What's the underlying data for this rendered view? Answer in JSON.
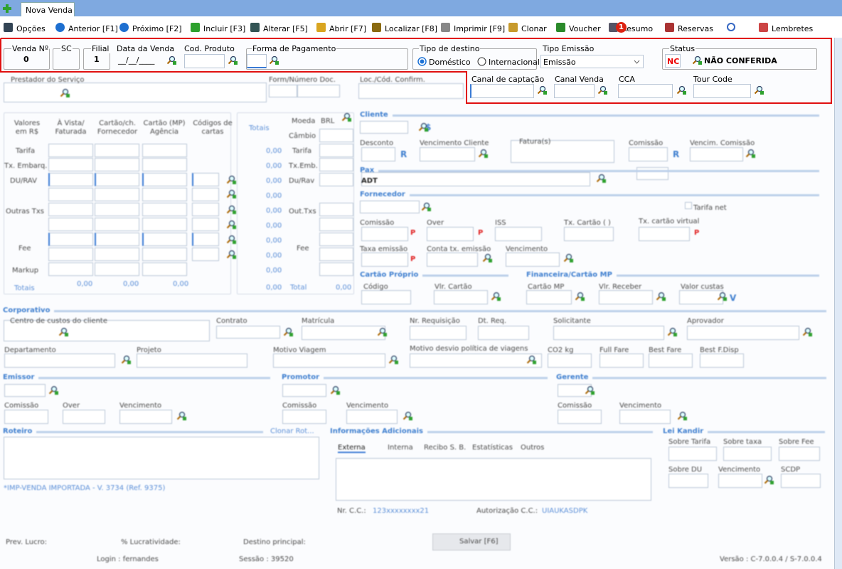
{
  "tab": "Nova Venda",
  "toolbar": [
    "Opções",
    "Anterior [F1]",
    "Próximo [F2]",
    "Incluir [F3]",
    "Alterar [F5]",
    "Abrir [F7]",
    "Localizar [F8]",
    "Imprimir [F9]",
    "Clonar",
    "Voucher",
    "Resumo",
    "Reservas",
    "Lembretes"
  ],
  "resumo_badge": "1",
  "header": {
    "venda_no": {
      "label": "Venda Nº",
      "value": "0"
    },
    "sc": {
      "label": "SC"
    },
    "filial": {
      "label": "Filial",
      "value": "1"
    },
    "data_venda": {
      "label": "Data da Venda",
      "value": "__/__/____"
    },
    "cod_produto": {
      "label": "Cod. Produto"
    },
    "forma_pagamento": {
      "label": "Forma de Pagamento"
    },
    "tipo_destino": {
      "label": "Tipo de destino",
      "options": [
        "Doméstico",
        "Internacional"
      ]
    },
    "tipo_emissao": {
      "label": "Tipo Emissão",
      "value": "Emissão"
    },
    "status": {
      "label": "Status",
      "code": "NC",
      "text": "NÃO CONFERIDA"
    },
    "canal_captacao": {
      "label": "Canal de captação"
    },
    "canal_venda": {
      "label": "Canal Venda"
    },
    "cca": {
      "label": "CCA"
    },
    "tour_code": {
      "label": "Tour Code"
    }
  },
  "form": {
    "labels": [
      "Prestador do Serviço",
      "Form/Número Doc.",
      "Loc./Cód. Confirm.",
      "Valores em R$",
      "À Vista/ Faturada",
      "Cartão/ch. Fornecedor",
      "Cartão (MP) Agência",
      "Códigos de cartas",
      "Totais",
      "Moeda",
      "BRL",
      "Tarifa",
      "Tx. Embarq.",
      "DU/RAV",
      "Outras Txs",
      "Fee",
      "Markup",
      "Totais",
      "0,00",
      "0,00",
      "0,00",
      "Câmbio",
      "Tarifa",
      "Tx.Emb.",
      "Du/Rav",
      "Out.Txs",
      "Fee",
      "Total",
      "0,00",
      "0,00",
      "0,00",
      "0,00",
      "0,00",
      "0,00",
      "0,00",
      "0,00",
      "0,00",
      "0,00",
      "0,00",
      "Cliente",
      "Desconto",
      "Vencimento Cliente",
      "Fatura(s)",
      "Comissão",
      "Vencim. Comissão",
      "Pax",
      "ADT",
      "Fornecedor",
      "Tarifa net",
      "Comissão",
      "Over",
      "ISS",
      "Tx. Cartão ( )",
      "Tx. cartão virtual",
      "Taxa emissão",
      "Conta tx. emissão",
      "Vencimento",
      "Cartão Próprio",
      "Financeira/Cartão MP",
      "Código",
      "Vlr. Cartão",
      "Cartão MP",
      "Vlr. Receber",
      "Valor custas",
      "Corporativo",
      "Centro de custos do cliente",
      "Contrato",
      "Matrícula",
      "Nr. Requisição",
      "Dt. Req.",
      "Solicitante",
      "Aprovador",
      "Departamento",
      "Projeto",
      "Motivo Viagem",
      "Motivo desvio política de viagens",
      "CO2 kg",
      "Full Fare",
      "Best Fare",
      "Best F.Disp",
      "Emissor",
      "Promotor",
      "Gerente",
      "Comissão",
      "Over",
      "Vencimento",
      "Comissão",
      "Vencimento",
      "Comissão",
      "Vencimento",
      "Roteiro",
      "Clonar Rot...",
      "Informações Adicionais",
      "Lei Kandir",
      "Externa",
      "Interna",
      "Recibo S. B.",
      "Estatísticas",
      "Outros",
      "Sobre Tarifa",
      "Sobre taxa",
      "Sobre Fee",
      "Sobre DU",
      "Vencimento",
      "SCDP",
      "*IMP-VENDA IMPORTADA - V. 3734 (Ref. 9375)",
      "Nr. C.C.:",
      "123xxxxxxxx21",
      "Autorização C.C.:",
      "UIAUKASDPK",
      "Prev. Lucro:",
      "% Lucratividade:",
      "Destino principal:",
      "Salvar [F6]",
      "Login : fernandes",
      "Sessão : 39520",
      "Versão : C-7.0.0.4 / S-7.0.0.4",
      "$",
      "R",
      "R",
      "P",
      "P",
      "P",
      "P",
      "V"
    ]
  }
}
